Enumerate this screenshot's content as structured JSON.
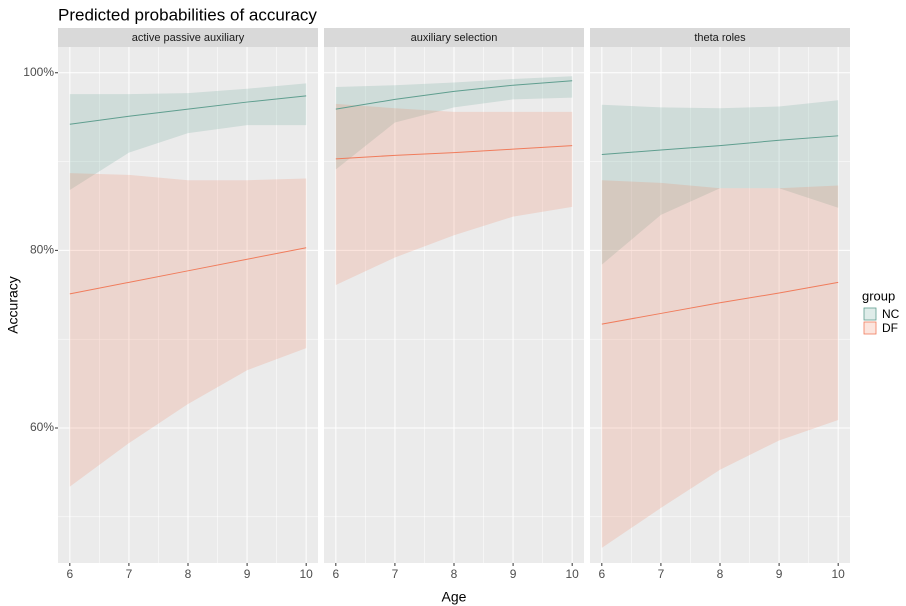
{
  "chart_data": {
    "type": "line",
    "title": "Predicted probabilities of accuracy",
    "xlabel": "Age",
    "ylabel": "Accuracy",
    "xlim": [
      5.8,
      10.2
    ],
    "xticks": [
      6,
      7,
      8,
      9,
      10
    ],
    "ylim": [
      44.8,
      102.9
    ],
    "yticks": [
      {
        "value": 60,
        "label": "60%"
      },
      {
        "value": 80,
        "label": "80%"
      },
      {
        "value": 100,
        "label": "100%"
      }
    ],
    "grid": true,
    "legend": {
      "title": "group",
      "position": "right"
    },
    "facets": [
      {
        "title": "active passive auxiliary",
        "x": [
          6,
          7,
          8,
          9,
          10
        ],
        "series": [
          {
            "name": "NC",
            "color": "#5f9e8f",
            "values": [
              94.2,
              95.1,
              95.9,
              96.7,
              97.4
            ],
            "lower": [
              86.8,
              91.0,
              93.2,
              94.1,
              94.1
            ],
            "upper": [
              97.6,
              97.6,
              97.7,
              98.2,
              98.8
            ]
          },
          {
            "name": "DF",
            "color": "#f07c5c",
            "values": [
              75.1,
              76.4,
              77.7,
              79.0,
              80.3
            ],
            "lower": [
              53.4,
              58.3,
              62.7,
              66.5,
              69.0
            ],
            "upper": [
              88.7,
              88.5,
              87.9,
              87.9,
              88.1
            ]
          }
        ]
      },
      {
        "title": "auxiliary selection",
        "x": [
          6,
          7,
          8,
          9,
          10
        ],
        "series": [
          {
            "name": "NC",
            "color": "#5f9e8f",
            "values": [
              95.9,
              97.0,
              97.9,
              98.6,
              99.1
            ],
            "lower": [
              89.1,
              94.4,
              96.1,
              97.0,
              97.2
            ],
            "upper": [
              98.4,
              98.6,
              98.9,
              99.3,
              99.6
            ]
          },
          {
            "name": "DF",
            "color": "#f07c5c",
            "values": [
              90.3,
              90.7,
              91.0,
              91.4,
              91.8
            ],
            "lower": [
              76.1,
              79.2,
              81.7,
              83.8,
              84.9
            ],
            "upper": [
              96.5,
              96.0,
              95.6,
              95.6,
              95.6
            ]
          }
        ]
      },
      {
        "title": "theta roles",
        "x": [
          6,
          7,
          8,
          9,
          10
        ],
        "series": [
          {
            "name": "NC",
            "color": "#5f9e8f",
            "values": [
              90.8,
              91.3,
              91.8,
              92.4,
              92.9
            ],
            "lower": [
              78.4,
              84.0,
              87.0,
              87.0,
              84.8
            ],
            "upper": [
              96.4,
              96.1,
              96.0,
              96.2,
              96.9
            ]
          },
          {
            "name": "DF",
            "color": "#f07c5c",
            "values": [
              71.7,
              72.9,
              74.1,
              75.2,
              76.4
            ],
            "lower": [
              46.5,
              51.0,
              55.3,
              58.6,
              60.9
            ],
            "upper": [
              87.9,
              87.6,
              87.0,
              87.0,
              87.3
            ]
          }
        ]
      }
    ]
  }
}
